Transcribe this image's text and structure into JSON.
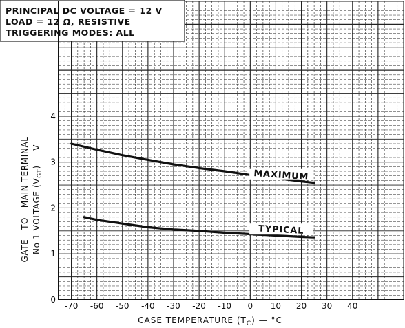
{
  "chart_data": {
    "type": "line",
    "notes": [
      "PRINCIPAL DC VOLTAGE = 12 V",
      "LOAD = 12 Ω, RESISTIVE",
      "TRIGGERING MODES: ALL"
    ],
    "xlabel": "CASE TEMPERATURE (T",
    "xlabel_sub": "C",
    "xlabel_unit": ") — °C",
    "ylabel_line1": "GATE - TO - MAIN TERMINAL",
    "ylabel_line2": "No 1 VOLTAGE (V",
    "ylabel_line2_sub": "GT",
    "ylabel_line2_end": ") — V",
    "xlim": [
      -75,
      60
    ],
    "ylim": [
      0,
      6.5
    ],
    "x_ticks": [
      -70,
      -60,
      -50,
      -40,
      -30,
      -20,
      -10,
      0,
      10,
      20,
      30,
      40
    ],
    "y_ticks": [
      0,
      1,
      2,
      3,
      4
    ],
    "grid": true,
    "series": [
      {
        "name": "MAXIMUM",
        "x": [
          -70,
          -60,
          -50,
          -40,
          -30,
          -20,
          -10,
          0,
          10,
          20,
          25
        ],
        "y": [
          3.4,
          3.27,
          3.15,
          3.05,
          2.95,
          2.87,
          2.8,
          2.72,
          2.65,
          2.58,
          2.55
        ]
      },
      {
        "name": "TYPICAL",
        "x": [
          -65,
          -60,
          -50,
          -40,
          -30,
          -20,
          -10,
          0,
          10,
          20,
          25
        ],
        "y": [
          1.8,
          1.74,
          1.66,
          1.58,
          1.53,
          1.5,
          1.46,
          1.43,
          1.4,
          1.37,
          1.36
        ]
      }
    ]
  }
}
